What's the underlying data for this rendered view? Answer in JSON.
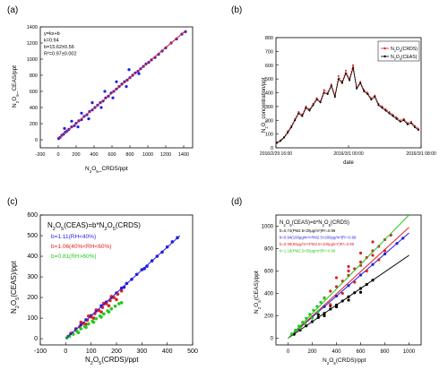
{
  "chart_data": [
    {
      "type": "scatter",
      "panel_label": "(a)",
      "xlabel": "N2O5_CRDS/ppt",
      "ylabel": "N2O5_CEAS/ppt",
      "xlim": [
        -200,
        1500
      ],
      "ylim": [
        -100,
        1400
      ],
      "xticks": [
        "-200",
        "0",
        "200",
        "400",
        "600",
        "800",
        "1000",
        "1200",
        "1400"
      ],
      "yticks": [
        "0",
        "200",
        "400",
        "600",
        "800",
        "1000",
        "1200",
        "1400"
      ],
      "annotation": [
        "y=kx+b",
        "k=0.94",
        "b=15.62±0.56",
        "R²=0.97±0.002"
      ],
      "fit": {
        "slope": 0.94,
        "intercept": 15.62
      },
      "colors": {
        "points": "#1f1fe6",
        "fit": "#e02020"
      },
      "series": [
        {
          "values": [
            [
              5,
              15
            ],
            [
              20,
              30
            ],
            [
              40,
              55
            ],
            [
              60,
              70
            ],
            [
              80,
              95
            ],
            [
              100,
              110
            ],
            [
              120,
              130
            ],
            [
              150,
              160
            ],
            [
              180,
              175
            ],
            [
              200,
              205
            ],
            [
              230,
              235
            ],
            [
              260,
              250
            ],
            [
              290,
              290
            ],
            [
              320,
              310
            ],
            [
              350,
              350
            ],
            [
              380,
              370
            ],
            [
              410,
              400
            ],
            [
              440,
              430
            ],
            [
              470,
              460
            ],
            [
              500,
              480
            ],
            [
              530,
              520
            ],
            [
              560,
              540
            ],
            [
              590,
              580
            ],
            [
              620,
              600
            ],
            [
              650,
              630
            ],
            [
              680,
              660
            ],
            [
              710,
              690
            ],
            [
              740,
              720
            ],
            [
              770,
              740
            ],
            [
              800,
              770
            ],
            [
              830,
              800
            ],
            [
              860,
              830
            ],
            [
              890,
              850
            ],
            [
              920,
              880
            ],
            [
              950,
              910
            ],
            [
              980,
              940
            ],
            [
              1010,
              960
            ],
            [
              1040,
              990
            ],
            [
              1080,
              1020
            ],
            [
              1120,
              1060
            ],
            [
              1160,
              1100
            ],
            [
              1200,
              1140
            ],
            [
              1260,
              1200
            ],
            [
              1320,
              1250
            ],
            [
              1380,
              1310
            ],
            [
              1420,
              1340
            ],
            [
              70,
              140
            ],
            [
              150,
              230
            ],
            [
              260,
              330
            ],
            [
              380,
              460
            ],
            [
              520,
              600
            ],
            [
              650,
              720
            ],
            [
              790,
              870
            ],
            [
              220,
              160
            ],
            [
              340,
              260
            ],
            [
              480,
              400
            ],
            [
              610,
              520
            ],
            [
              760,
              660
            ],
            [
              900,
              820
            ]
          ]
        }
      ]
    },
    {
      "type": "line",
      "panel_label": "(b)",
      "xlabel": "date",
      "ylabel": "N2O5 concentration/ppt",
      "x_tick_labels": [
        "2016/2/29 16:00",
        "2016/3/1 00:00",
        "2016/3/1 08:00"
      ],
      "x_range_hours": [
        16,
        32
      ],
      "ylim": [
        0,
        800
      ],
      "yticks": [
        "0",
        "100",
        "200",
        "300",
        "400",
        "500",
        "600",
        "700",
        "800"
      ],
      "legend_position": "top-right",
      "series": [
        {
          "name": "N2O5(CRDS)",
          "color": "#e02020",
          "x": [
            16.1,
            16.5,
            16.9,
            17.3,
            17.7,
            18.1,
            18.5,
            18.9,
            19.3,
            19.7,
            20.1,
            20.5,
            20.9,
            21.3,
            21.7,
            22.1,
            22.5,
            22.9,
            23.3,
            23.7,
            24.1,
            24.5,
            24.9,
            25.3,
            25.7,
            26.1,
            26.5,
            26.9,
            27.3,
            27.7,
            28.1,
            28.5,
            28.9,
            29.3,
            29.7,
            30.1,
            30.5,
            30.9,
            31.3,
            31.7
          ],
          "values": [
            40,
            55,
            80,
            120,
            160,
            210,
            260,
            240,
            300,
            280,
            320,
            360,
            340,
            420,
            400,
            460,
            380,
            520,
            480,
            560,
            500,
            600,
            440,
            480,
            420,
            400,
            360,
            380,
            320,
            300,
            280,
            260,
            240,
            220,
            200,
            210,
            180,
            190,
            160,
            140
          ]
        },
        {
          "name": "N2O5(CEAS)",
          "color": "#000000",
          "x": [
            16.1,
            16.5,
            16.9,
            17.3,
            17.7,
            18.1,
            18.5,
            18.9,
            19.3,
            19.7,
            20.1,
            20.5,
            20.9,
            21.3,
            21.7,
            22.1,
            22.5,
            22.9,
            23.3,
            23.7,
            24.1,
            24.5,
            24.9,
            25.3,
            25.7,
            26.1,
            26.5,
            26.9,
            27.3,
            27.7,
            28.1,
            28.5,
            28.9,
            29.3,
            29.7,
            30.1,
            30.5,
            30.9,
            31.3,
            31.7
          ],
          "values": [
            35,
            50,
            75,
            110,
            150,
            200,
            250,
            230,
            290,
            270,
            310,
            350,
            330,
            400,
            390,
            450,
            370,
            500,
            470,
            540,
            490,
            580,
            430,
            470,
            410,
            390,
            350,
            370,
            310,
            290,
            270,
            250,
            230,
            210,
            190,
            200,
            170,
            180,
            150,
            130
          ]
        }
      ]
    },
    {
      "type": "scatter",
      "panel_label": "(c)",
      "title": "N2O5(CEAS)=b*N2O5(CRDS)",
      "xlabel": "N2O5(CRDS)/ppt",
      "ylabel": "N2O5(CEAS)/ppt",
      "xlim": [
        -100,
        500
      ],
      "ylim": [
        -30,
        600
      ],
      "xticks": [
        "-100",
        "0",
        "100",
        "200",
        "300",
        "400",
        "500"
      ],
      "yticks": [
        "0",
        "100",
        "200",
        "300",
        "400",
        "500",
        "600"
      ],
      "fit_color": "#1f1fe6",
      "series": [
        {
          "name": "b=1.11(RH<40%)",
          "color": "#1f1fe6",
          "slope": 1.11,
          "values": [
            [
              20,
              25
            ],
            [
              40,
              48
            ],
            [
              60,
              68
            ],
            [
              80,
              92
            ],
            [
              100,
              112
            ],
            [
              120,
              135
            ],
            [
              140,
              160
            ],
            [
              160,
              178
            ],
            [
              180,
              200
            ],
            [
              200,
              222
            ],
            [
              220,
              245
            ],
            [
              240,
              268
            ],
            [
              260,
              288
            ],
            [
              280,
              312
            ],
            [
              300,
              335
            ],
            [
              320,
              352
            ],
            [
              340,
              378
            ],
            [
              360,
              400
            ],
            [
              380,
              420
            ],
            [
              400,
              445
            ],
            [
              420,
              470
            ],
            [
              440,
              490
            ],
            [
              150,
              170
            ],
            [
              230,
              250
            ],
            [
              310,
              340
            ]
          ]
        },
        {
          "name": "b=1.06(40%<RH<60%)",
          "color": "#e02020",
          "slope": 1.06,
          "values": [
            [
              10,
              12
            ],
            [
              25,
              28
            ],
            [
              40,
              42
            ],
            [
              55,
              58
            ],
            [
              70,
              75
            ],
            [
              85,
              90
            ],
            [
              100,
              106
            ],
            [
              115,
              122
            ],
            [
              130,
              138
            ],
            [
              145,
              152
            ],
            [
              160,
              170
            ],
            [
              175,
              185
            ],
            [
              190,
              200
            ],
            [
              205,
              216
            ],
            [
              220,
              232
            ],
            [
              60,
              80
            ],
            [
              90,
              110
            ],
            [
              120,
              140
            ],
            [
              150,
              172
            ],
            [
              180,
              205
            ],
            [
              80,
              70
            ],
            [
              110,
              100
            ],
            [
              140,
              130
            ],
            [
              170,
              160
            ],
            [
              200,
              190
            ]
          ]
        },
        {
          "name": "b=0.81(RH>60%)",
          "color": "#22c922",
          "slope": 0.81,
          "values": [
            [
              5,
              5
            ],
            [
              15,
              12
            ],
            [
              30,
              22
            ],
            [
              45,
              35
            ],
            [
              60,
              48
            ],
            [
              75,
              60
            ],
            [
              90,
              72
            ],
            [
              105,
              85
            ],
            [
              120,
              97
            ],
            [
              135,
              110
            ],
            [
              150,
              120
            ],
            [
              165,
              135
            ],
            [
              180,
              145
            ],
            [
              195,
              158
            ],
            [
              210,
              170
            ],
            [
              220,
              175
            ],
            [
              50,
              30
            ],
            [
              80,
              55
            ],
            [
              110,
              80
            ],
            [
              140,
              105
            ],
            [
              170,
              130
            ]
          ]
        }
      ]
    },
    {
      "type": "scatter",
      "panel_label": "(d)",
      "title": "N2O5(CEAS)=b*N2O5(CRDS)",
      "xlabel": "N2O5(CRDS)/ppt",
      "ylabel": "N2O5(CEAS)/ppt",
      "xlim": [
        -100,
        1100
      ],
      "ylim": [
        -60,
        1100
      ],
      "xticks": [
        "0",
        "200",
        "400",
        "600",
        "800",
        "1000"
      ],
      "yticks": [
        "0",
        "200",
        "400",
        "600",
        "800",
        "1000"
      ],
      "series": [
        {
          "name": "b=0.74(PM2.5<20μg/m³)R²=0.99",
          "color": "#000000",
          "slope": 0.74,
          "values": [
            [
              50,
              35
            ],
            [
              100,
              72
            ],
            [
              150,
              110
            ],
            [
              200,
              148
            ],
            [
              250,
              185
            ],
            [
              300,
              222
            ],
            [
              350,
              260
            ],
            [
              400,
              296
            ],
            [
              450,
              332
            ],
            [
              500,
              370
            ],
            [
              550,
              406
            ],
            [
              600,
              444
            ],
            [
              650,
              480
            ],
            [
              700,
              518
            ],
            [
              300,
              200
            ],
            [
              400,
              280
            ],
            [
              500,
              340
            ],
            [
              600,
              410
            ],
            [
              250,
              210
            ],
            [
              350,
              290
            ]
          ]
        },
        {
          "name": "b=0.94(100μg/m³<PM2.5<200μg/m³)R²=0.99",
          "color": "#1f1fe6",
          "slope": 0.94,
          "values": [
            [
              100,
              94
            ],
            [
              200,
              188
            ],
            [
              300,
              282
            ],
            [
              400,
              376
            ],
            [
              500,
              470
            ],
            [
              600,
              564
            ],
            [
              700,
              658
            ],
            [
              800,
              752
            ],
            [
              900,
              846
            ],
            [
              950,
              893
            ]
          ]
        },
        {
          "name": "b=0.99(50μg/m³<PM2.5<100μg/m³)R²=0.99",
          "color": "#e02020",
          "slope": 0.99,
          "values": [
            [
              300,
              360
            ],
            [
              350,
              420
            ],
            [
              400,
              460
            ],
            [
              450,
              510
            ],
            [
              500,
              560
            ],
            [
              550,
              620
            ],
            [
              600,
              680
            ],
            [
              650,
              720
            ],
            [
              700,
              780
            ],
            [
              750,
              820
            ],
            [
              800,
              880
            ],
            [
              850,
              920
            ],
            [
              400,
              540
            ],
            [
              500,
              640
            ],
            [
              600,
              760
            ],
            [
              700,
              860
            ],
            [
              350,
              300
            ],
            [
              450,
              400
            ],
            [
              550,
              500
            ],
            [
              650,
              600
            ],
            [
              750,
              700
            ],
            [
              800,
              780
            ],
            [
              500,
              600
            ],
            [
              600,
              650
            ],
            [
              700,
              740
            ]
          ]
        },
        {
          "name": "b=1.18(PM2.5<50μg/m³)R²=0.99",
          "color": "#22c922",
          "slope": 1.18,
          "values": [
            [
              30,
              38
            ],
            [
              60,
              72
            ],
            [
              90,
              108
            ],
            [
              120,
              142
            ],
            [
              150,
              178
            ],
            [
              180,
              214
            ],
            [
              210,
              250
            ],
            [
              240,
              284
            ],
            [
              270,
              320
            ],
            [
              300,
              355
            ],
            [
              100,
              90
            ],
            [
              140,
              130
            ],
            [
              200,
              180
            ],
            [
              250,
              240
            ]
          ]
        }
      ]
    }
  ]
}
